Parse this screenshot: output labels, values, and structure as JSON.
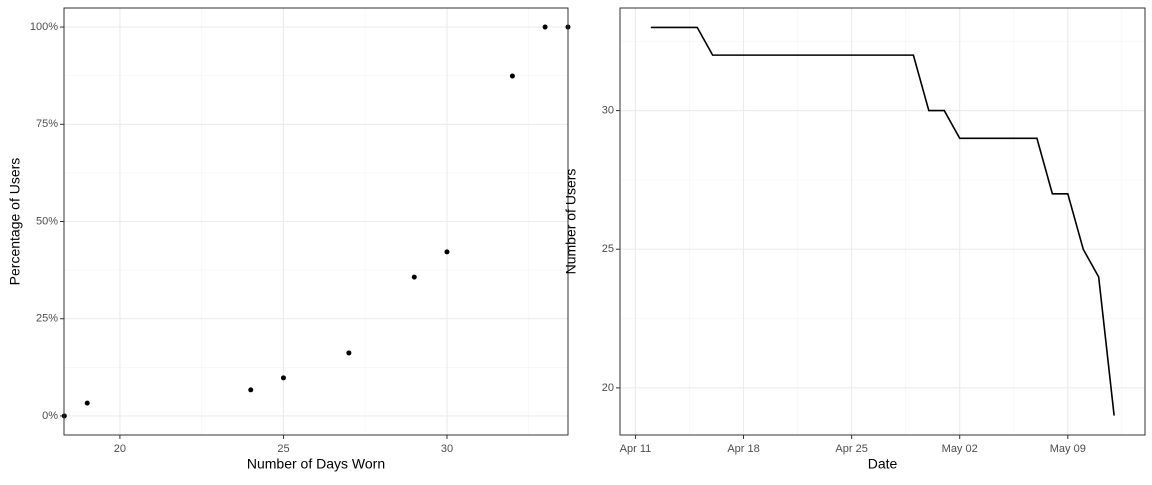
{
  "chart_data": [
    {
      "type": "scatter",
      "x_label": "Number of Days Worn",
      "y_label": "Percentage of Users",
      "x": [
        18.3,
        19,
        24,
        25,
        27,
        29,
        30,
        32,
        33,
        33.7
      ],
      "values": [
        0,
        3.3,
        6.7,
        9.8,
        16.2,
        35.7,
        42.2,
        87.4,
        100,
        100
      ],
      "color": "#000000",
      "xlim": [
        18.29,
        33.7
      ],
      "xticks": [
        20,
        25,
        30
      ],
      "ylim": [
        -4.9,
        104.9
      ],
      "yticks": [
        {
          "value": 0,
          "label": "0%"
        },
        {
          "value": 25,
          "label": "25%"
        },
        {
          "value": 50,
          "label": "50%"
        },
        {
          "value": 75,
          "label": "75%"
        },
        {
          "value": 100,
          "label": "100%"
        }
      ],
      "grid": true
    },
    {
      "type": "line",
      "x_label": "Date",
      "y_label": "Number of Users",
      "x": [
        "Apr 12",
        "Apr 15",
        "Apr 16",
        "Apr 29",
        "Apr 30",
        "May 1",
        "May 2",
        "May 7",
        "May 8",
        "May 9",
        "May 10",
        "May 11",
        "May 12"
      ],
      "values": [
        33,
        33,
        32,
        32,
        30,
        30,
        29,
        29,
        27,
        27,
        25,
        24,
        19
      ],
      "color": "#000000",
      "xlim": [
        "Apr 10",
        "May 14"
      ],
      "xticks": [
        "Apr 11",
        "Apr 18",
        "Apr 25",
        "May 02",
        "May 09"
      ],
      "ylim": [
        18.3,
        33.7
      ],
      "yticks": [
        20,
        25,
        30
      ],
      "grid": true
    }
  ]
}
